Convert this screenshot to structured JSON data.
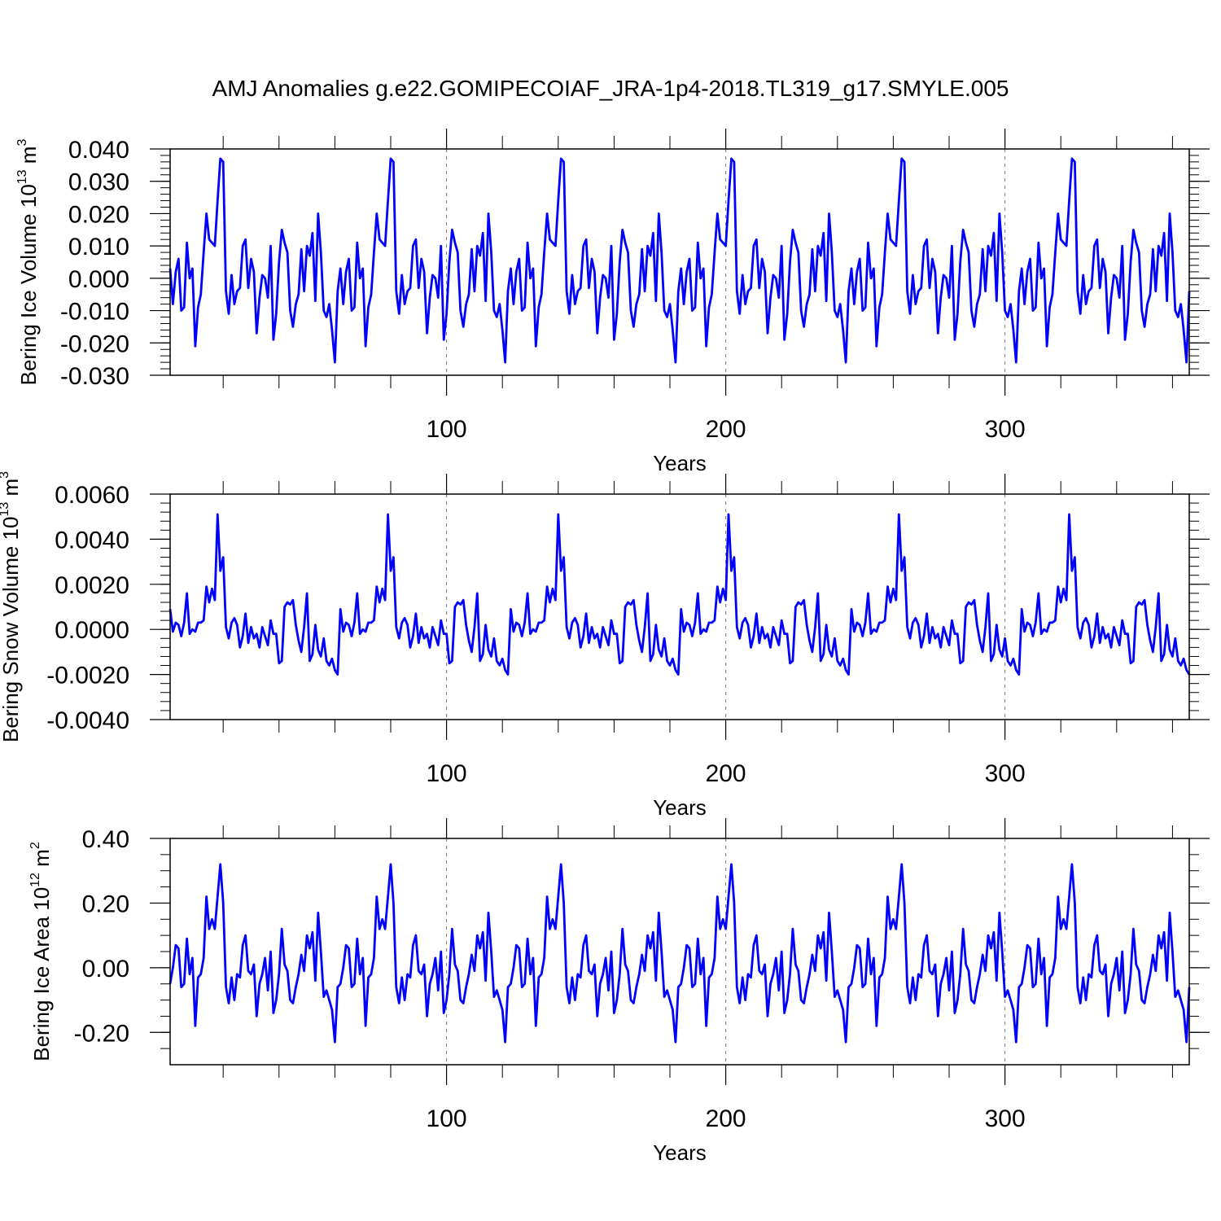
{
  "figure": {
    "title": "AMJ Anomalies g.e22.GOMIPECOIAF_JRA-1p4-2018.TL319_g17.SMYLE.005"
  },
  "chart_data": [
    {
      "type": "line",
      "ylabel": {
        "text": "Bering Ice Volume 10",
        "sup": "13",
        "unit": " m",
        "unit_sup": "3"
      },
      "xlabel": "Years",
      "xlim": [
        1,
        366
      ],
      "ylim": [
        -0.03,
        0.04
      ],
      "yticks": [
        -0.03,
        -0.02,
        -0.01,
        0.0,
        0.01,
        0.02,
        0.03,
        0.04
      ],
      "ytick_labels": [
        "-0.030",
        "-0.020",
        "-0.010",
        "0.000",
        "0.010",
        "0.020",
        "0.030",
        "0.040"
      ],
      "xticks": [
        100,
        200,
        300
      ],
      "xtick_labels": [
        "100",
        "200",
        "300"
      ],
      "x_minor": [
        20,
        40,
        60,
        80,
        120,
        140,
        160,
        180,
        220,
        240,
        260,
        280,
        320,
        340,
        360
      ],
      "y_minor_step": 0.002,
      "grid": "vertical dashed at major x ticks",
      "series_color": "#0000ff",
      "base_period": 61,
      "repeats": 6,
      "series": [
        {
          "base": [
            0.003,
            -0.008,
            0.002,
            0.006,
            -0.01,
            -0.009,
            0.011,
            0.0,
            0.003,
            -0.021,
            -0.009,
            -0.005,
            0.008,
            0.02,
            0.012,
            0.011,
            0.01,
            0.024,
            0.037,
            0.036,
            -0.004,
            -0.011,
            0.001,
            -0.008,
            -0.004,
            -0.003,
            0.01,
            0.012,
            -0.003,
            0.006,
            0.002,
            -0.017,
            -0.006,
            0.001,
            0.0,
            -0.006,
            0.01,
            -0.019,
            -0.011,
            0.005,
            0.015,
            0.011,
            0.008,
            -0.01,
            -0.015,
            -0.008,
            -0.005,
            0.009,
            -0.004,
            0.01,
            0.007,
            0.014,
            -0.007,
            0.02,
            0.008,
            -0.01,
            -0.012,
            -0.008,
            -0.016,
            -0.026,
            -0.004
          ]
        }
      ]
    },
    {
      "type": "line",
      "ylabel": {
        "text": "Bering Snow Volume 10",
        "sup": "13",
        "unit": " m",
        "unit_sup": "3"
      },
      "xlabel": "Years",
      "xlim": [
        1,
        366
      ],
      "ylim": [
        -0.004,
        0.006
      ],
      "yticks": [
        -0.004,
        -0.002,
        0.0,
        0.002,
        0.004,
        0.006
      ],
      "ytick_labels": [
        "-0.0040",
        "-0.0020",
        "0.0000",
        "0.0020",
        "0.0040",
        "0.0060"
      ],
      "xticks": [
        100,
        200,
        300
      ],
      "xtick_labels": [
        "100",
        "200",
        "300"
      ],
      "x_minor": [
        20,
        40,
        60,
        80,
        120,
        140,
        160,
        180,
        220,
        240,
        260,
        280,
        320,
        340,
        360
      ],
      "y_minor_step": 0.0004,
      "grid": "vertical dashed at major x ticks",
      "series_color": "#0000ff",
      "base_period": 61,
      "repeats": 6,
      "series": [
        {
          "base": [
            0.0009,
            -0.0001,
            0.0003,
            0.0002,
            -0.0003,
            0.0003,
            0.0016,
            -0.0002,
            0.0,
            -0.0001,
            0.0003,
            0.0003,
            0.0004,
            0.0019,
            0.0012,
            0.0018,
            0.0013,
            0.0051,
            0.0026,
            0.0032,
            0.0001,
            -0.0004,
            0.0003,
            0.0005,
            0.0002,
            -0.0008,
            -0.0003,
            0.0007,
            -0.0006,
            0.0001,
            -0.0004,
            -0.0002,
            -0.0008,
            0.0001,
            -0.0003,
            -0.0007,
            0.0004,
            -0.0002,
            -0.0002,
            -0.0015,
            -0.0014,
            0.001,
            0.0012,
            0.0011,
            0.0013,
            0.0002,
            -0.0005,
            -0.001,
            0.0001,
            0.0016,
            -0.0014,
            -0.0011,
            0.0002,
            -0.0009,
            -0.0012,
            -0.0004,
            -0.0014,
            -0.0016,
            -0.0013,
            -0.0018,
            -0.002
          ]
        }
      ]
    },
    {
      "type": "line",
      "ylabel": {
        "text": "Bering Ice Area 10",
        "sup": "12",
        "unit": " m",
        "unit_sup": "2"
      },
      "xlabel": "Years",
      "xlim": [
        1,
        366
      ],
      "ylim": [
        -0.3,
        0.4
      ],
      "yticks": [
        -0.2,
        0.0,
        0.2,
        0.4
      ],
      "ytick_labels": [
        "-0.20",
        "0.00",
        "0.20",
        "0.40"
      ],
      "xticks": [
        100,
        200,
        300
      ],
      "xtick_labels": [
        "100",
        "200",
        "300"
      ],
      "x_minor": [
        20,
        40,
        60,
        80,
        120,
        140,
        160,
        180,
        220,
        240,
        260,
        280,
        320,
        340,
        360
      ],
      "y_minor_step": 0.05,
      "grid": "vertical dashed at major x ticks",
      "series_color": "#0000ff",
      "base_period": 61,
      "repeats": 6,
      "series": [
        {
          "base": [
            -0.05,
            0.0,
            0.07,
            0.06,
            -0.06,
            -0.05,
            0.09,
            -0.02,
            0.03,
            -0.18,
            -0.03,
            -0.02,
            0.03,
            0.22,
            0.12,
            0.15,
            0.12,
            0.22,
            0.32,
            0.2,
            -0.06,
            -0.11,
            -0.03,
            -0.1,
            -0.02,
            -0.03,
            0.07,
            0.1,
            -0.01,
            -0.02,
            0.01,
            -0.15,
            -0.05,
            -0.02,
            0.03,
            -0.07,
            0.05,
            -0.14,
            -0.1,
            -0.02,
            0.12,
            0.01,
            -0.01,
            -0.1,
            -0.11,
            -0.06,
            -0.02,
            0.04,
            -0.01,
            0.1,
            0.06,
            0.11,
            -0.04,
            0.17,
            0.05,
            -0.09,
            -0.07,
            -0.1,
            -0.13,
            -0.23,
            -0.06
          ]
        }
      ]
    }
  ]
}
